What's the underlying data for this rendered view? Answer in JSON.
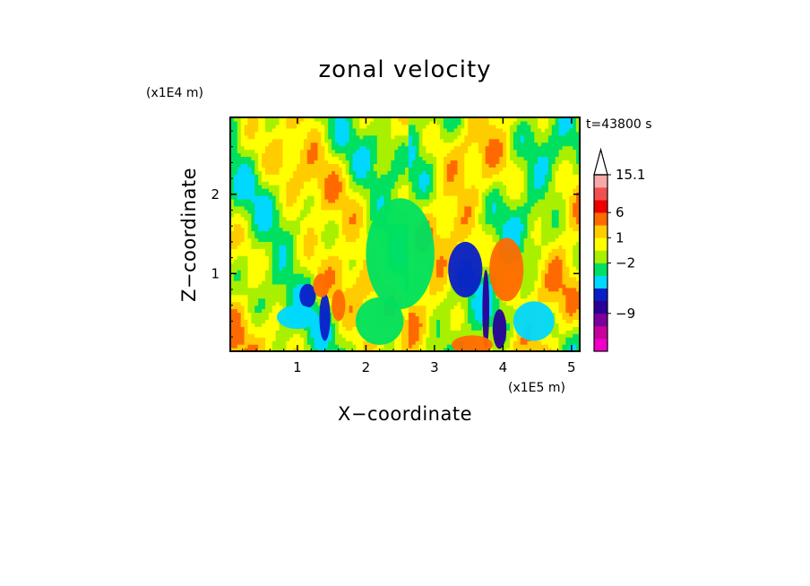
{
  "chart_data": {
    "type": "heatmap",
    "title": "zonal velocity",
    "xlabel": "X−coordinate",
    "ylabel": "Z−coordinate",
    "x_scale_label": "(x1E5 m)",
    "y_scale_label": "(x1E4 m)",
    "time_label": "t=43800 s",
    "xlim": [
      0.02,
      5.12
    ],
    "ylim": [
      0.02,
      2.97
    ],
    "x_ticks": [
      {
        "value": 1,
        "label": "1"
      },
      {
        "value": 2,
        "label": "2"
      },
      {
        "value": 3,
        "label": "3"
      },
      {
        "value": 4,
        "label": "4"
      },
      {
        "value": 5,
        "label": "5"
      }
    ],
    "y_ticks": [
      {
        "value": 1,
        "label": "1"
      },
      {
        "value": 2,
        "label": "2"
      }
    ],
    "colorbar": {
      "levels": [
        {
          "color": "#f000c8"
        },
        {
          "color": "#c8009c"
        },
        {
          "color": "#7c009a"
        },
        {
          "color": "#2a0096"
        },
        {
          "color": "#0a1ec8"
        },
        {
          "color": "#00d8ff"
        },
        {
          "color": "#00e060"
        },
        {
          "color": "#a8f000"
        },
        {
          "color": "#ffff00"
        },
        {
          "color": "#ffcc00"
        },
        {
          "color": "#ff6a00"
        },
        {
          "color": "#ee0000"
        },
        {
          "color": "#f25050"
        },
        {
          "color": "#f8a8a8"
        }
      ],
      "labels": [
        {
          "value": "15.1",
          "level_index": 13
        },
        {
          "value": "6",
          "level_index": 10
        },
        {
          "value": "1",
          "level_index": 8
        },
        {
          "value": "−2",
          "level_index": 6
        },
        {
          "value": "−9",
          "level_index": 2
        }
      ]
    },
    "features": [
      {
        "x": 1.15,
        "z": 0.72,
        "level_index": 4,
        "rx": 0.12,
        "rz": 0.15
      },
      {
        "x": 1.4,
        "z": 0.45,
        "level_index": 4,
        "rx": 0.08,
        "rz": 0.3
      },
      {
        "x": 1.35,
        "z": 0.85,
        "level_index": 10,
        "rx": 0.12,
        "rz": 0.15
      },
      {
        "x": 1.6,
        "z": 0.6,
        "level_index": 10,
        "rx": 0.1,
        "rz": 0.2
      },
      {
        "x": 3.45,
        "z": 1.05,
        "level_index": 4,
        "rx": 0.25,
        "rz": 0.35
      },
      {
        "x": 3.75,
        "z": 0.55,
        "level_index": 3,
        "rx": 0.05,
        "rz": 0.5
      },
      {
        "x": 3.95,
        "z": 0.3,
        "level_index": 3,
        "rx": 0.1,
        "rz": 0.25
      },
      {
        "x": 4.05,
        "z": 1.05,
        "level_index": 10,
        "rx": 0.25,
        "rz": 0.4
      },
      {
        "x": 3.55,
        "z": 0.1,
        "level_index": 10,
        "rx": 0.3,
        "rz": 0.12
      },
      {
        "x": 4.45,
        "z": 0.4,
        "level_index": 5,
        "rx": 0.3,
        "rz": 0.25
      },
      {
        "x": 2.5,
        "z": 1.25,
        "level_index": 6,
        "rx": 0.5,
        "rz": 0.7
      },
      {
        "x": 1.0,
        "z": 0.45,
        "level_index": 5,
        "rx": 0.3,
        "rz": 0.15
      },
      {
        "x": 2.2,
        "z": 0.4,
        "level_index": 6,
        "rx": 0.35,
        "rz": 0.3
      }
    ]
  }
}
